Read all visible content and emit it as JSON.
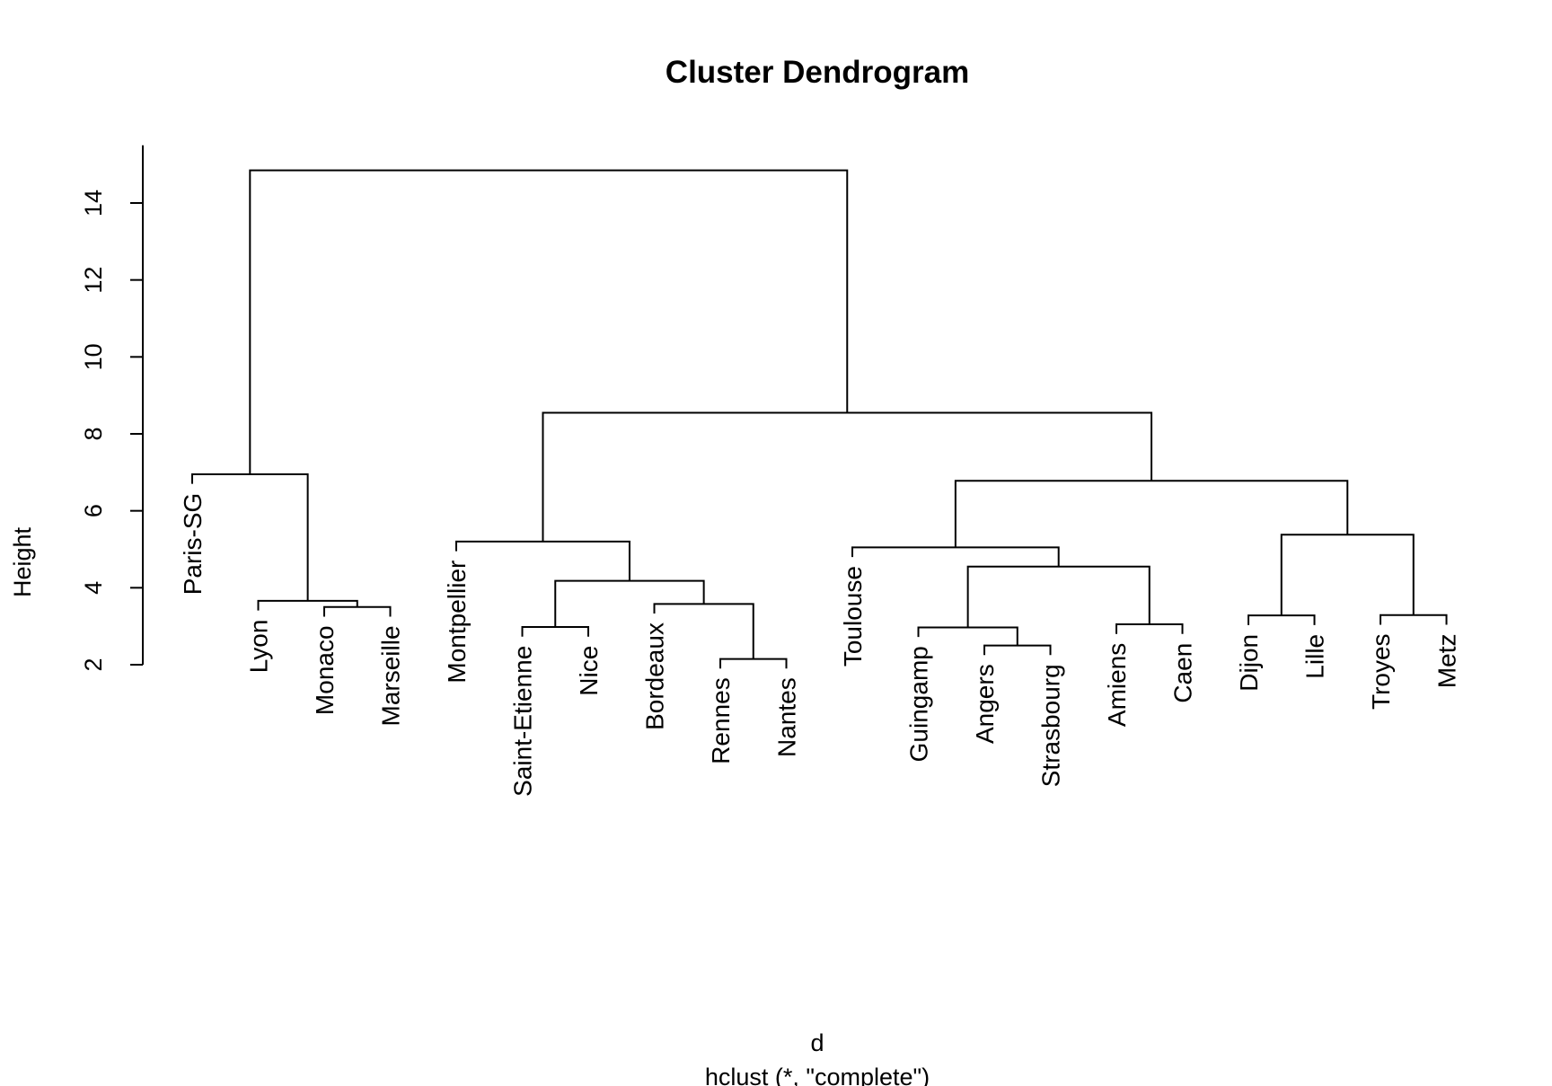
{
  "chart_data": {
    "type": "dendrogram",
    "title": "Cluster Dendrogram",
    "ylabel": "Height",
    "xlabel": "d",
    "sub": "hclust (*, \"complete\")",
    "ylim": [
      2,
      15.5
    ],
    "yticks": [
      2,
      4,
      6,
      8,
      10,
      12,
      14
    ],
    "leaves": [
      "Paris-SG",
      "Lyon",
      "Monaco",
      "Marseille",
      "Montpellier",
      "Saint-Etienne",
      "Nice",
      "Bordeaux",
      "Rennes",
      "Nantes",
      "Toulouse",
      "Guingamp",
      "Angers",
      "Strasbourg",
      "Amiens",
      "Caen",
      "Dijon",
      "Lille",
      "Troyes",
      "Metz"
    ],
    "merges": [
      {
        "left": "Rennes",
        "right": "Nantes",
        "height": 2.15
      },
      {
        "left": "Angers",
        "right": "Strasbourg",
        "height": 2.5
      },
      {
        "left": "Guingamp",
        "right": [
          "Angers",
          "Strasbourg"
        ],
        "height": 2.97
      },
      {
        "left": "Saint-Etienne",
        "right": "Nice",
        "height": 2.98
      },
      {
        "left": "Amiens",
        "right": "Caen",
        "height": 3.05
      },
      {
        "left": "Dijon",
        "right": "Lille",
        "height": 3.28
      },
      {
        "left": "Troyes",
        "right": "Metz",
        "height": 3.29
      },
      {
        "left": "Monaco",
        "right": "Marseille",
        "height": 3.5
      },
      {
        "left": "Bordeaux",
        "right": [
          "Rennes",
          "Nantes"
        ],
        "height": 3.58
      },
      {
        "left": "Lyon",
        "right": [
          "Monaco",
          "Marseille"
        ],
        "height": 3.66
      },
      {
        "left": [
          "Saint-Etienne",
          "Nice"
        ],
        "right": [
          "Bordeaux",
          "Rennes",
          "Nantes"
        ],
        "height": 4.18
      },
      {
        "left": [
          "Guingamp",
          "Angers",
          "Strasbourg"
        ],
        "right": [
          "Amiens",
          "Caen"
        ],
        "height": 4.55
      },
      {
        "left": "Toulouse",
        "right": [
          "Guingamp",
          "Angers",
          "Strasbourg",
          "Amiens",
          "Caen"
        ],
        "height": 5.05
      },
      {
        "left": "Montpellier",
        "right": [
          "Saint-Etienne",
          "Nice",
          "Bordeaux",
          "Rennes",
          "Nantes"
        ],
        "height": 5.2
      },
      {
        "left": [
          "Dijon",
          "Lille"
        ],
        "right": [
          "Troyes",
          "Metz"
        ],
        "height": 5.38
      },
      {
        "left": [
          "Toulouse",
          "Guingamp",
          "Angers",
          "Strasbourg",
          "Amiens",
          "Caen"
        ],
        "right": [
          "Dijon",
          "Lille",
          "Troyes",
          "Metz"
        ],
        "height": 6.78
      },
      {
        "left": "Paris-SG",
        "right": [
          "Lyon",
          "Monaco",
          "Marseille"
        ],
        "height": 6.95
      },
      {
        "left": [
          "Montpellier",
          "Saint-Etienne",
          "Nice",
          "Bordeaux",
          "Rennes",
          "Nantes"
        ],
        "right": [
          "Toulouse",
          "Guingamp",
          "Angers",
          "Strasbourg",
          "Amiens",
          "Caen",
          "Dijon",
          "Lille",
          "Troyes",
          "Metz"
        ],
        "height": 8.55
      },
      {
        "left": [
          "Paris-SG",
          "Lyon",
          "Monaco",
          "Marseille"
        ],
        "right": [
          "Montpellier",
          "Saint-Etienne",
          "Nice",
          "Bordeaux",
          "Rennes",
          "Nantes",
          "Toulouse",
          "Guingamp",
          "Angers",
          "Strasbourg",
          "Amiens",
          "Caen",
          "Dijon",
          "Lille",
          "Troyes",
          "Metz"
        ],
        "height": 14.85
      }
    ],
    "leaf_label_hang": 0.25
  }
}
